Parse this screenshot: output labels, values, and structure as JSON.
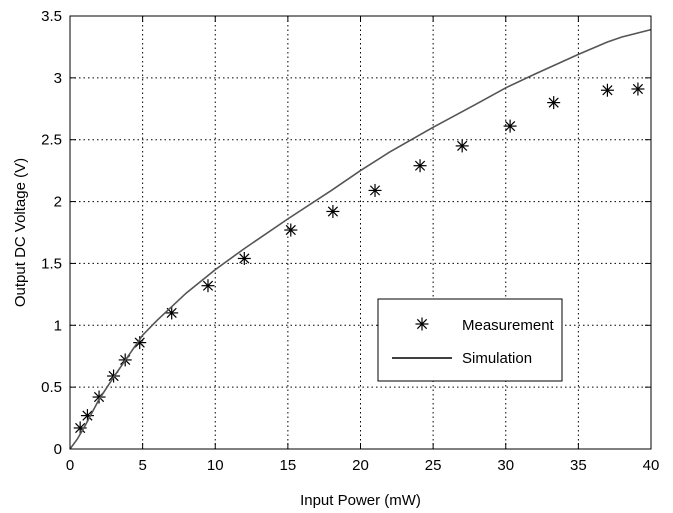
{
  "chart_data": {
    "type": "scatter",
    "xlabel": "Input Power (mW)",
    "ylabel": "Output DC Voltage (V)",
    "xlim": [
      0,
      40
    ],
    "ylim": [
      0,
      3.5
    ],
    "xticks": [
      0,
      5,
      10,
      15,
      20,
      25,
      30,
      35,
      40
    ],
    "yticks": [
      0,
      0.5,
      1,
      1.5,
      2,
      2.5,
      3,
      3.5
    ],
    "xtick_labels": [
      "0",
      "5",
      "10",
      "15",
      "20",
      "25",
      "30",
      "35",
      "40"
    ],
    "ytick_labels": [
      "0",
      "0.5",
      "1",
      "1.5",
      "2",
      "2.5",
      "3",
      "3.5"
    ],
    "grid": true,
    "legend_position": "lower-right",
    "series": [
      {
        "name": "Measurement",
        "kind": "markers",
        "marker": "asterisk",
        "x": [
          0.7,
          1.2,
          2.0,
          3.0,
          3.8,
          4.8,
          7.0,
          9.5,
          12.0,
          15.2,
          18.1,
          21.0,
          24.1,
          27.0,
          30.3,
          33.3,
          37.0,
          39.1
        ],
        "y": [
          0.17,
          0.27,
          0.42,
          0.59,
          0.72,
          0.86,
          1.1,
          1.32,
          1.54,
          1.77,
          1.92,
          2.09,
          2.29,
          2.45,
          2.61,
          2.8,
          2.9,
          2.91
        ]
      },
      {
        "name": "Simulation",
        "kind": "line",
        "color": "#555555",
        "x": [
          0,
          0.5,
          1,
          2,
          3,
          4,
          5,
          6,
          7,
          8,
          10,
          12,
          15,
          18,
          20,
          22,
          25,
          28,
          30,
          32,
          35,
          37,
          38,
          40
        ],
        "y": [
          0,
          0.08,
          0.18,
          0.4,
          0.58,
          0.75,
          0.92,
          1.04,
          1.15,
          1.26,
          1.45,
          1.62,
          1.86,
          2.09,
          2.25,
          2.4,
          2.6,
          2.79,
          2.92,
          3.03,
          3.19,
          3.29,
          3.33,
          3.39
        ]
      }
    ]
  }
}
